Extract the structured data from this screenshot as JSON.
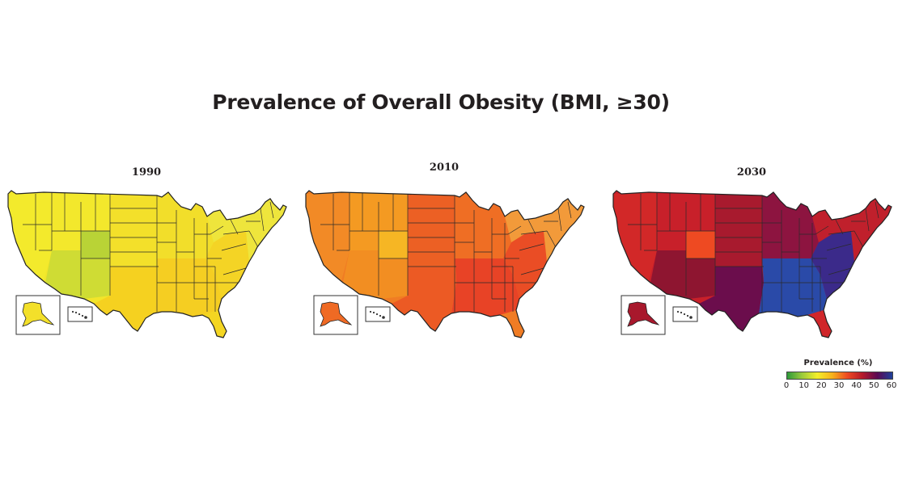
{
  "title": "Prevalence of Overall Obesity (BMI, ≥30)",
  "legend": {
    "title": "Prevalence (%)",
    "ticks": [
      "0",
      "10",
      "20",
      "30",
      "40",
      "50",
      "60"
    ],
    "gradient": [
      "#2e9a3a",
      "#9ccb3b",
      "#f3ee2a",
      "#f7b21c",
      "#ee4a22",
      "#b51a2a",
      "#5b0a52",
      "#1e3f9a"
    ]
  },
  "maps": [
    {
      "year": "1990",
      "base_color": "#f2e52a",
      "regions": {
        "west": "#f3ea2c",
        "mountain": "#f3e82c",
        "colorado": "#b9d336",
        "southwest": "#cfdc34",
        "plains": "#f3e02a",
        "texas": "#f5d120",
        "midwest": "#f2de2a",
        "south": "#f5ce22",
        "appalachia": "#f4d425",
        "northeast": "#eee53c",
        "florida": "#f4d622",
        "alaska": "#f3e02a",
        "hawaii": "#ffffff"
      }
    },
    {
      "year": "2010",
      "base_color": "#f07c24",
      "regions": {
        "west": "#f28a26",
        "mountain": "#f49a22",
        "colorado": "#f6b624",
        "southwest": "#f28e22",
        "plains": "#ec6024",
        "texas": "#ec5a24",
        "midwest": "#ef6e24",
        "south": "#e84326",
        "appalachia": "#ea4d25",
        "northeast": "#f29a3a",
        "florida": "#f07c24",
        "alaska": "#ef6a24",
        "hawaii": "#ffffff"
      }
    },
    {
      "year": "2030",
      "base_color": "#c8202a",
      "regions": {
        "west": "#d22828",
        "mountain": "#c8202a",
        "colorado": "#ee4a22",
        "southwest": "#8e1530",
        "plains": "#a81a2e",
        "texas": "#6b0d4c",
        "midwest": "#8d1440",
        "south": "#2a4aa8",
        "appalachia": "#3b2a8a",
        "northeast": "#c0202c",
        "florida": "#d0262a",
        "alaska": "#a8182c",
        "hawaii": "#ffffff"
      }
    }
  ]
}
